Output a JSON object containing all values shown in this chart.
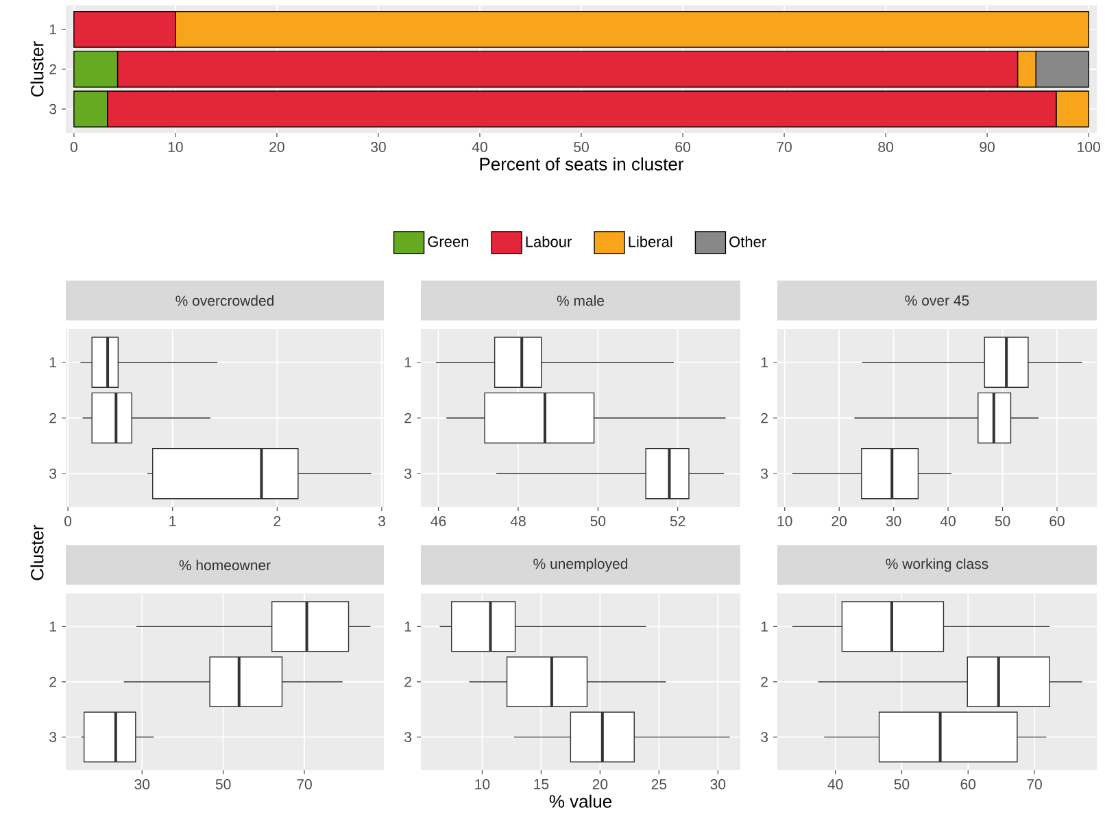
{
  "chart_data": [
    {
      "type": "bar",
      "orientation": "horizontal",
      "stacked": true,
      "categories": [
        "1",
        "2",
        "3"
      ],
      "xlabel": "Percent of seats in cluster",
      "ylabel": "Cluster",
      "xlim": [
        -0.8,
        100.8
      ],
      "xticks": [
        0,
        10,
        20,
        30,
        40,
        50,
        60,
        70,
        80,
        90,
        100
      ],
      "grid": true,
      "legend": "bottom",
      "series": [
        {
          "name": "Green",
          "color": "#66aa22",
          "values": [
            0,
            4.3,
            3.3
          ]
        },
        {
          "name": "Labour",
          "color": "#e3263a",
          "values": [
            10,
            88.7,
            93.5
          ]
        },
        {
          "name": "Liberal",
          "color": "#f8a51b",
          "values": [
            90,
            1.8,
            3.2
          ]
        },
        {
          "name": "Other",
          "color": "#888888",
          "values": [
            0,
            5.2,
            0
          ]
        }
      ]
    },
    {
      "type": "box",
      "orientation": "horizontal",
      "title": "% overcrowded",
      "categories": [
        "1",
        "2",
        "3"
      ],
      "xlim": [
        -0.02,
        3.02
      ],
      "xticks": [
        0,
        1,
        2,
        3
      ],
      "grid": true,
      "boxes": [
        {
          "low": 0.12,
          "q1": 0.23,
          "median": 0.38,
          "q3": 0.48,
          "high": 1.43
        },
        {
          "low": 0.14,
          "q1": 0.23,
          "median": 0.46,
          "q3": 0.61,
          "high": 1.36
        },
        {
          "low": 0.76,
          "q1": 0.81,
          "median": 1.85,
          "q3": 2.2,
          "high": 2.9
        }
      ]
    },
    {
      "type": "box",
      "orientation": "horizontal",
      "title": "% male",
      "categories": [
        "1",
        "2",
        "3"
      ],
      "xlim": [
        45.56,
        53.57
      ],
      "xticks": [
        46,
        48,
        50,
        52
      ],
      "grid": true,
      "boxes": [
        {
          "low": 45.94,
          "q1": 47.41,
          "median": 48.09,
          "q3": 48.58,
          "high": 51.9
        },
        {
          "low": 46.2,
          "q1": 47.16,
          "median": 48.67,
          "q3": 49.9,
          "high": 53.2
        },
        {
          "low": 47.45,
          "q1": 51.2,
          "median": 51.79,
          "q3": 52.28,
          "high": 53.16
        }
      ]
    },
    {
      "type": "box",
      "orientation": "horizontal",
      "title": "% over 45",
      "categories": [
        "1",
        "2",
        "3"
      ],
      "xlim": [
        8.65,
        67.3
      ],
      "xticks": [
        10,
        20,
        30,
        40,
        50,
        60
      ],
      "grid": true,
      "boxes": [
        {
          "low": 24.2,
          "q1": 46.7,
          "median": 50.7,
          "q3": 54.7,
          "high": 64.6
        },
        {
          "low": 22.8,
          "q1": 45.5,
          "median": 48.4,
          "q3": 51.5,
          "high": 56.6
        },
        {
          "low": 11.4,
          "q1": 24.1,
          "median": 29.7,
          "q3": 34.5,
          "high": 40.6
        }
      ]
    },
    {
      "type": "box",
      "orientation": "horizontal",
      "title": "% homeowner",
      "ylabel": "Cluster",
      "categories": [
        "1",
        "2",
        "3"
      ],
      "xlim": [
        11.2,
        89.6
      ],
      "xticks": [
        30,
        50,
        70
      ],
      "grid": true,
      "boxes": [
        {
          "low": 28.6,
          "q1": 62.0,
          "median": 70.6,
          "q3": 80.9,
          "high": 86.3
        },
        {
          "low": 25.5,
          "q1": 46.7,
          "median": 53.9,
          "q3": 64.5,
          "high": 79.4
        },
        {
          "low": 15.0,
          "q1": 15.7,
          "median": 23.5,
          "q3": 28.4,
          "high": 32.9
        }
      ]
    },
    {
      "type": "box",
      "orientation": "horizontal",
      "title": "% unemployed",
      "xlabel": "% value",
      "categories": [
        "1",
        "2",
        "3"
      ],
      "xlim": [
        4.8,
        31.9
      ],
      "xticks": [
        10,
        15,
        20,
        25,
        30
      ],
      "grid": true,
      "boxes": [
        {
          "low": 6.4,
          "q1": 7.4,
          "median": 10.7,
          "q3": 12.8,
          "high": 23.9
        },
        {
          "low": 8.9,
          "q1": 12.1,
          "median": 15.9,
          "q3": 18.9,
          "high": 25.6
        },
        {
          "low": 12.7,
          "q1": 17.5,
          "median": 20.2,
          "q3": 22.9,
          "high": 31.0
        }
      ]
    },
    {
      "type": "box",
      "orientation": "horizontal",
      "title": "% working class",
      "categories": [
        "1",
        "2",
        "3"
      ],
      "xlim": [
        31.25,
        79.4
      ],
      "xticks": [
        40,
        50,
        60,
        70
      ],
      "grid": true,
      "boxes": [
        {
          "low": 33.5,
          "q1": 41.0,
          "median": 48.5,
          "q3": 56.3,
          "high": 72.3
        },
        {
          "low": 37.4,
          "q1": 59.9,
          "median": 64.6,
          "q3": 72.3,
          "high": 77.2
        },
        {
          "low": 38.3,
          "q1": 46.6,
          "median": 55.8,
          "q3": 67.4,
          "high": 71.8
        }
      ]
    }
  ]
}
